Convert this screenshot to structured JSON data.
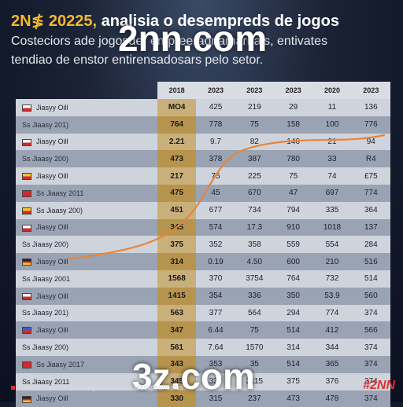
{
  "header": {
    "brand": "2N≸ 20225,",
    "title": " analisia o desempreds de jogos",
    "subtitle_line1": "Costeciors ade jogosder empreeradnamarnais, entivates",
    "subtitle_line2": "tendiao de enstor entirensadosars pelo setor."
  },
  "table": {
    "columns": [
      "2018",
      "2023",
      "2023",
      "2023",
      "2020",
      "2023"
    ],
    "rows": [
      {
        "label": "Jiasyy Oill",
        "flag_colors": [
          "#ffffff",
          "#d62828"
        ],
        "values": [
          "MO4",
          "425",
          "219",
          "29",
          "11",
          "136"
        ]
      },
      {
        "label": "Ss Jiaasy 201)",
        "flag_colors": [],
        "values": [
          "764",
          "778",
          "75",
          "158",
          "100",
          "776"
        ]
      },
      {
        "label": "Jiasyy Oill",
        "flag_colors": [
          "#ffffff",
          "#d62828"
        ],
        "values": [
          "2.21",
          "9.7",
          "82",
          "146",
          "21",
          "94"
        ]
      },
      {
        "label": "Ss Jiaasy 200)",
        "flag_colors": [],
        "values": [
          "473",
          "378",
          "387",
          "780",
          "33",
          "R4"
        ]
      },
      {
        "label": "Jiasyy Oill",
        "flag_colors": [
          "#f4c430",
          "#d62828"
        ],
        "values": [
          "217",
          "75",
          "225",
          "75",
          "74",
          "£75"
        ]
      },
      {
        "label": "Ss Jiaasy 2011",
        "flag_colors": [
          "#d62828"
        ],
        "values": [
          "475",
          "45",
          "670",
          "47",
          "697",
          "774"
        ]
      },
      {
        "label": "Ss Jiaasy 200)",
        "flag_colors": [
          "#f4c430",
          "#d62828"
        ],
        "values": [
          "451",
          "677",
          "734",
          "794",
          "335",
          "364"
        ]
      },
      {
        "label": "Jiasyy Oill",
        "flag_colors": [
          "#ffffff",
          "#d62828"
        ],
        "values": [
          "345",
          "574",
          "17.3",
          "910",
          "1018",
          "137"
        ]
      },
      {
        "label": "Ss Jiaasy 200)",
        "flag_colors": [],
        "values": [
          "375",
          "352",
          "358",
          "559",
          "554",
          "284"
        ]
      },
      {
        "label": "Jiasyy Oill",
        "flag_colors": [
          "#222222",
          "#d62828",
          "#f4c430"
        ],
        "values": [
          "314",
          "0.19",
          "4.50",
          "600",
          "210",
          "516"
        ]
      },
      {
        "label": "Ss Jiaasy 2001",
        "flag_colors": [],
        "values": [
          "1568",
          "370",
          "3754",
          "764",
          "732",
          "514"
        ]
      },
      {
        "label": "Jiasyy Oill",
        "flag_colors": [
          "#ffffff",
          "#d62828"
        ],
        "values": [
          "1415",
          "354",
          "336",
          "350",
          "53.9",
          "560"
        ]
      },
      {
        "label": "Ss Jiaasy 201)",
        "flag_colors": [],
        "values": [
          "563",
          "377",
          "564",
          "294",
          "774",
          "374"
        ]
      },
      {
        "label": "Jiasyy Oill",
        "flag_colors": [
          "#3a5fcd",
          "#d62828"
        ],
        "values": [
          "347",
          "6.44",
          "75",
          "514",
          "412",
          "566"
        ]
      },
      {
        "label": "Ss Jiaasy 200)",
        "flag_colors": [],
        "values": [
          "561",
          "7.64",
          "1570",
          "314",
          "344",
          "374"
        ]
      },
      {
        "label": "Ss Jiaasy 2017",
        "flag_colors": [
          "#d62828"
        ],
        "values": [
          "343",
          "353",
          "35",
          "514",
          "365",
          "374"
        ]
      },
      {
        "label": "Ss Jiaasy 2011",
        "flag_colors": [],
        "values": [
          "345",
          "337",
          "2115",
          "375",
          "376",
          "374"
        ]
      },
      {
        "label": "Jiasyy Oill",
        "flag_colors": [
          "#222222",
          "#d62828",
          "#f4c430"
        ],
        "values": [
          "330",
          "315",
          "237",
          "473",
          "478",
          "374"
        ]
      }
    ]
  },
  "watermarks": {
    "top": "2nn.com",
    "bottom": "3z.com"
  },
  "footer": {
    "text": "Rsocde Mec esrde lovogos lhcomde aloslionahectus",
    "logo": "#2NN"
  },
  "colors": {
    "accent": "#f5b82e",
    "trend_line": "#e8853a",
    "logo": "#e03131"
  }
}
